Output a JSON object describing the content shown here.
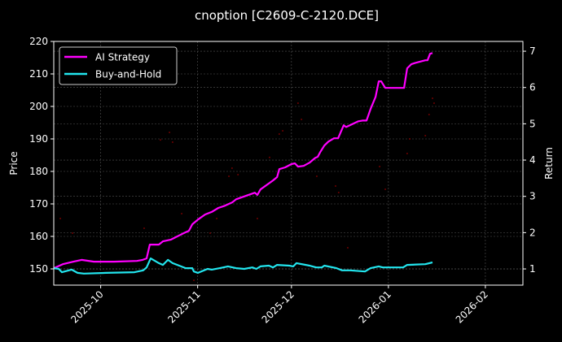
{
  "chart_data": {
    "type": "line",
    "title": "cnoption [C2609-C-2120.DCE]",
    "xlabel": "",
    "ylabel": "Price",
    "y2label": "Return",
    "x_origin_date": "2025-09-16",
    "x_unit": "days since 2025-09-16",
    "xlim": [
      0,
      150
    ],
    "ylim": [
      145,
      220
    ],
    "y2lim": [
      0.553,
      7.27
    ],
    "grid": true,
    "legend_position": "top-left",
    "x_ticks": [
      {
        "label": "2025-10",
        "value": 15
      },
      {
        "label": "2025-11",
        "value": 46
      },
      {
        "label": "2025-12",
        "value": 76
      },
      {
        "label": "2026-01",
        "value": 107
      },
      {
        "label": "2026-02",
        "value": 138
      }
    ],
    "y_ticks": [
      150,
      160,
      170,
      180,
      190,
      200,
      210,
      220
    ],
    "y2_ticks": [
      1,
      2,
      3,
      4,
      5,
      6,
      7
    ],
    "series": [
      {
        "name": "AI Strategy",
        "axis": "right",
        "color": "#ff00ff",
        "x": [
          0,
          2.9,
          6.3,
          8.9,
          12.8,
          19.3,
          26.6,
          28.4,
          29.7,
          30.7,
          33.6,
          34.9,
          37.5,
          41.4,
          43.2,
          44.3,
          46.1,
          48.4,
          50.5,
          52.6,
          54.7,
          57.0,
          58.3,
          64.3,
          65.1,
          66.1,
          70.1,
          71.4,
          72.1,
          74.0,
          76.0,
          77.1,
          78.1,
          79.9,
          81.8,
          83.6,
          84.4,
          85.2,
          86.5,
          87.8,
          89.6,
          90.9,
          92.7,
          93.5,
          97.4,
          98.7,
          100,
          101.3,
          102.9,
          103.9,
          104.7,
          106,
          112,
          113,
          114.3,
          115.6,
          118.8,
          119.5,
          120.3,
          121.1
        ],
        "values": [
          1.02,
          1.13,
          1.2,
          1.25,
          1.2,
          1.2,
          1.22,
          1.25,
          1.29,
          1.67,
          1.67,
          1.76,
          1.81,
          1.98,
          2.05,
          2.23,
          2.36,
          2.5,
          2.57,
          2.68,
          2.74,
          2.83,
          2.92,
          3.1,
          3.04,
          3.19,
          3.44,
          3.53,
          3.75,
          3.8,
          3.89,
          3.91,
          3.82,
          3.84,
          3.93,
          4.06,
          4.09,
          4.22,
          4.4,
          4.51,
          4.6,
          4.6,
          4.96,
          4.91,
          5.07,
          5.09,
          5.09,
          5.41,
          5.74,
          6.17,
          6.17,
          5.99,
          5.99,
          6.53,
          6.64,
          6.68,
          6.75,
          6.75,
          6.93,
          6.95
        ]
      },
      {
        "name": "Buy-and-Hold",
        "axis": "right",
        "color": "#22e5ee",
        "x": [
          0,
          1.6,
          2.6,
          5.7,
          7.6,
          9.6,
          16.7,
          25.8,
          28.6,
          29.7,
          31,
          33.6,
          34.9,
          36.5,
          38,
          40.1,
          42.2,
          44.3,
          44.8,
          46.1,
          49.2,
          50.5,
          53.1,
          55.7,
          58.3,
          60.9,
          63.5,
          64.8,
          66.1,
          68.8,
          70.1,
          71.4,
          75.3,
          76.6,
          77.6,
          81.8,
          83.9,
          85.7,
          86.5,
          90.4,
          92.2,
          94.8,
          99.5,
          101.3,
          103.9,
          105.2,
          111.7,
          113,
          118.8,
          121.1
        ],
        "values": [
          1.02,
          1.0,
          0.91,
          0.98,
          0.89,
          0.87,
          0.89,
          0.91,
          0.96,
          1.04,
          1.29,
          1.16,
          1.11,
          1.25,
          1.16,
          1.09,
          1.02,
          1.02,
          0.93,
          0.89,
          1.0,
          0.98,
          1.02,
          1.07,
          1.02,
          1.0,
          1.04,
          1.0,
          1.07,
          1.09,
          1.04,
          1.11,
          1.09,
          1.07,
          1.16,
          1.09,
          1.04,
          1.04,
          1.09,
          1.02,
          0.96,
          0.96,
          0.93,
          1.02,
          1.07,
          1.04,
          1.04,
          1.11,
          1.13,
          1.18
        ]
      },
      {
        "name": "Price",
        "axis": "left",
        "color": "#8b0000",
        "markers_only": true,
        "x": [
          2.1,
          6,
          28.9,
          37,
          38,
          34.1,
          56,
          57,
          58.9,
          72.1,
          73.2,
          69,
          65.1,
          52.1,
          50,
          40.9,
          44.8,
          121.6,
          121.1,
          120,
          118.8,
          113.8,
          113,
          106,
          104.2,
          90.1,
          91.1,
          94,
          84.1,
          79.2,
          78.1
        ],
        "values": [
          165.5,
          161,
          162.5,
          192,
          189,
          189.7,
          178.5,
          181,
          179,
          191.5,
          192.5,
          184.3,
          165.5,
          165.5,
          161,
          167,
          146.5,
          201,
          202.5,
          197.5,
          191,
          190,
          185.5,
          174.5,
          181.5,
          175.5,
          173.5,
          156.5,
          178.5,
          196,
          201
        ]
      }
    ]
  }
}
